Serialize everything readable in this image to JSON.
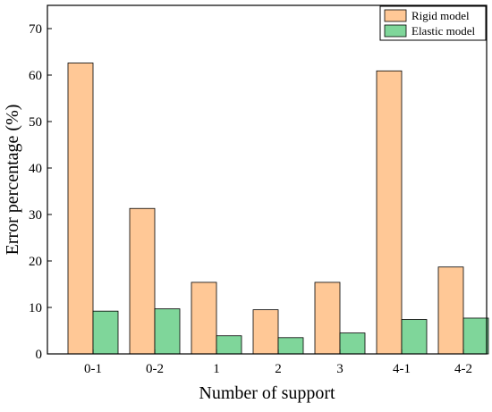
{
  "chart_data": {
    "type": "bar",
    "categories": [
      "0-1",
      "0-2",
      "1",
      "2",
      "3",
      "4-1",
      "4-2"
    ],
    "series": [
      {
        "name": "Rigid model",
        "color": "#FFC896",
        "values": [
          62.6,
          31.3,
          15.4,
          9.5,
          15.4,
          60.9,
          18.7
        ]
      },
      {
        "name": "Elastic model",
        "color": "#7FD69A",
        "values": [
          9.2,
          9.7,
          3.9,
          3.5,
          4.5,
          7.4,
          7.7
        ]
      }
    ],
    "xlabel": "Number of support",
    "ylabel": "Error percentage (%)",
    "ylim": [
      0,
      75
    ],
    "yticks": [
      0,
      10,
      20,
      30,
      40,
      50,
      60,
      70
    ],
    "grid": false,
    "legend_position": "top-right"
  }
}
